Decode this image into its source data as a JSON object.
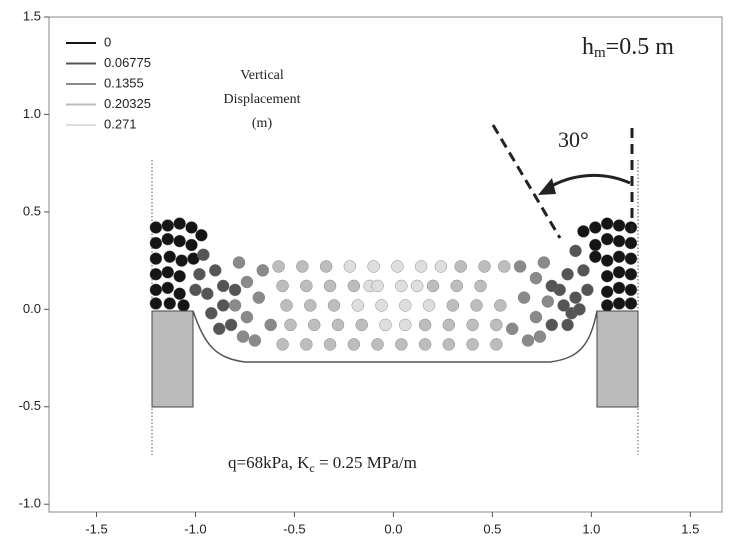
{
  "chart_data": {
    "type": "scatter",
    "legend_title": [
      "Vertical",
      "Displacement",
      "(m)"
    ],
    "annotations": {
      "hm": {
        "base": "h",
        "sub": "m",
        "rest": "=0.5 m"
      },
      "angle": "30°",
      "load": {
        "base": "q=68kPa, K",
        "sub": "c",
        "rest": " = 0.25 MPa/m"
      }
    },
    "xlim": [
      -1.74,
      1.66
    ],
    "ylim": [
      -1.04,
      1.5
    ],
    "xticks": [
      -1.5,
      {
        "value": -1,
        "label": "-1.0"
      },
      -0.5,
      {
        "value": 0,
        "label": "0.0"
      },
      0.5,
      {
        "value": 1,
        "label": "1.0"
      },
      1.5
    ],
    "yticks": [
      {
        "value": -1,
        "label": "-1.0"
      },
      -0.5,
      {
        "value": 0,
        "label": "0.0"
      },
      0.5,
      {
        "value": 1,
        "label": "1.0"
      },
      1.5
    ],
    "legend": "top-left",
    "series": [
      {
        "name": "0",
        "color": "#151515",
        "x": [
          -1.2,
          -1.14,
          -1.08,
          -1.02,
          -1.2,
          -1.14,
          -1.08,
          -1.02,
          -0.97,
          -1.2,
          -1.13,
          -1.07,
          -1.01,
          -1.2,
          -1.14,
          -1.08,
          -1.2,
          -1.14,
          -1.08,
          -1.2,
          -1.13,
          -1.06,
          1.2,
          1.14,
          1.08,
          1.02,
          0.96,
          1.2,
          1.14,
          1.08,
          1.02,
          1.2,
          1.14,
          1.08,
          1.02,
          1.2,
          1.14,
          1.08,
          1.2,
          1.14,
          1.08,
          1.2,
          1.14,
          1.08
        ],
        "y": [
          0.42,
          0.43,
          0.44,
          0.42,
          0.34,
          0.36,
          0.35,
          0.33,
          0.38,
          0.26,
          0.27,
          0.25,
          0.26,
          0.18,
          0.19,
          0.17,
          0.1,
          0.11,
          0.08,
          0.03,
          0.03,
          0.02,
          0.42,
          0.43,
          0.44,
          0.42,
          0.4,
          0.34,
          0.35,
          0.36,
          0.33,
          0.26,
          0.27,
          0.25,
          0.27,
          0.18,
          0.19,
          0.17,
          0.1,
          0.11,
          0.09,
          0.03,
          0.03,
          0.02
        ]
      },
      {
        "name": "0.06775",
        "color": "#555555",
        "x": [
          -0.96,
          -0.98,
          -1.0,
          -0.94,
          -0.9,
          -0.86,
          -0.92,
          -0.86,
          -0.88,
          -0.82,
          -0.8,
          0.92,
          0.96,
          0.98,
          0.92,
          0.88,
          0.84,
          0.9,
          0.86,
          0.88,
          0.8,
          0.8,
          0.94
        ],
        "y": [
          0.28,
          0.18,
          0.1,
          0.08,
          0.2,
          0.12,
          -0.02,
          0.02,
          -0.1,
          -0.08,
          0.1,
          0.3,
          0.2,
          0.1,
          0.06,
          0.18,
          0.1,
          -0.02,
          0.02,
          -0.08,
          -0.08,
          0.12,
          0.0
        ]
      },
      {
        "name": "0.1355",
        "color": "#8a8a8a",
        "x": [
          -0.78,
          -0.74,
          -0.8,
          -0.74,
          -0.76,
          -0.7,
          -0.68,
          -0.66,
          -0.62,
          0.76,
          0.72,
          0.78,
          0.72,
          0.74,
          0.68,
          0.66,
          0.64,
          0.6
        ],
        "y": [
          0.24,
          0.14,
          0.02,
          -0.04,
          -0.14,
          -0.16,
          0.06,
          0.2,
          -0.08,
          0.24,
          0.16,
          0.04,
          -0.04,
          -0.14,
          -0.16,
          0.06,
          0.22,
          -0.1
        ]
      },
      {
        "name": "0.20325",
        "color": "#bdbdbd",
        "x": [
          -0.58,
          -0.46,
          -0.34,
          0.34,
          0.46,
          0.56,
          -0.56,
          -0.44,
          -0.32,
          -0.2,
          0.2,
          0.32,
          0.44,
          -0.54,
          -0.42,
          -0.3,
          0.3,
          0.42,
          0.54,
          -0.52,
          -0.4,
          -0.28,
          -0.16,
          0.16,
          0.28,
          0.4,
          0.52,
          -0.56,
          -0.44,
          -0.32,
          -0.2,
          -0.08,
          0.04,
          0.16,
          0.28,
          0.4,
          0.52
        ],
        "y": [
          0.22,
          0.22,
          0.22,
          0.22,
          0.22,
          0.22,
          0.12,
          0.12,
          0.12,
          0.12,
          0.12,
          0.12,
          0.12,
          0.02,
          0.02,
          0.02,
          0.02,
          0.02,
          0.02,
          -0.08,
          -0.08,
          -0.08,
          -0.08,
          -0.08,
          -0.08,
          -0.08,
          -0.08,
          -0.18,
          -0.18,
          -0.18,
          -0.18,
          -0.18,
          -0.18,
          -0.18,
          -0.18,
          -0.18,
          -0.18
        ]
      },
      {
        "name": "0.271",
        "color": "#dedede",
        "x": [
          -0.22,
          -0.1,
          0.02,
          0.14,
          0.24,
          -0.12,
          -0.08,
          0.04,
          0.12,
          -0.18,
          -0.06,
          0.06,
          0.18,
          -0.04,
          0.06
        ],
        "y": [
          0.22,
          0.22,
          0.22,
          0.22,
          0.22,
          0.12,
          0.12,
          0.12,
          0.12,
          0.02,
          0.02,
          0.02,
          0.02,
          -0.08,
          -0.08
        ]
      }
    ]
  }
}
